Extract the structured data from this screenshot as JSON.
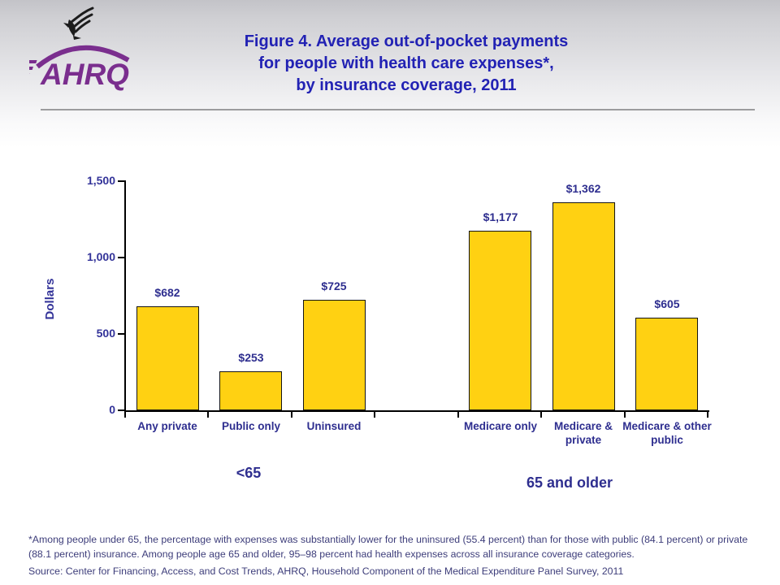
{
  "header": {
    "logo_org": "AHRQ",
    "title_line1": "Figure 4. Average out-of-pocket payments",
    "title_line2": "for people with health care expenses*,",
    "title_line3": "by insurance coverage, 2011"
  },
  "chart_data": {
    "type": "bar",
    "title": "Figure 4. Average out-of-pocket payments for people with health care expenses*, by insurance coverage, 2011",
    "xlabel": "",
    "ylabel": "Dollars",
    "ylim": [
      0,
      1500
    ],
    "yticks": [
      0,
      500,
      1000,
      1500
    ],
    "ytick_labels": [
      "0",
      "500",
      "1,000",
      "1,500"
    ],
    "grid": false,
    "legend": false,
    "bar_color": "#ffd112",
    "bar_border_color": "#141414",
    "label_color": "#2e2e8f",
    "groups": [
      {
        "label": "<65",
        "categories": [
          "Any private",
          "Public only",
          "Uninsured"
        ],
        "values": [
          682,
          253,
          725
        ],
        "value_labels": [
          "$682",
          "$253",
          "$725"
        ]
      },
      {
        "label": "65 and older",
        "categories": [
          "Medicare only",
          "Medicare & private",
          "Medicare & other public"
        ],
        "values": [
          1177,
          1362,
          605
        ],
        "value_labels": [
          "$1,177",
          "$1,362",
          "$605"
        ]
      }
    ]
  },
  "footnotes": {
    "note": "*Among people under 65, the percentage with expenses was substantially lower for the uninsured (55.4 percent) than for those with public (84.1 percent) or private (88.1 percent) insurance. Among people age 65 and older, 95–98 percent had health expenses across all insurance coverage categories.",
    "source": "Source: Center for Financing, Access, and Cost Trends, AHRQ, Household Component of the Medical Expenditure Panel Survey, 2011"
  }
}
